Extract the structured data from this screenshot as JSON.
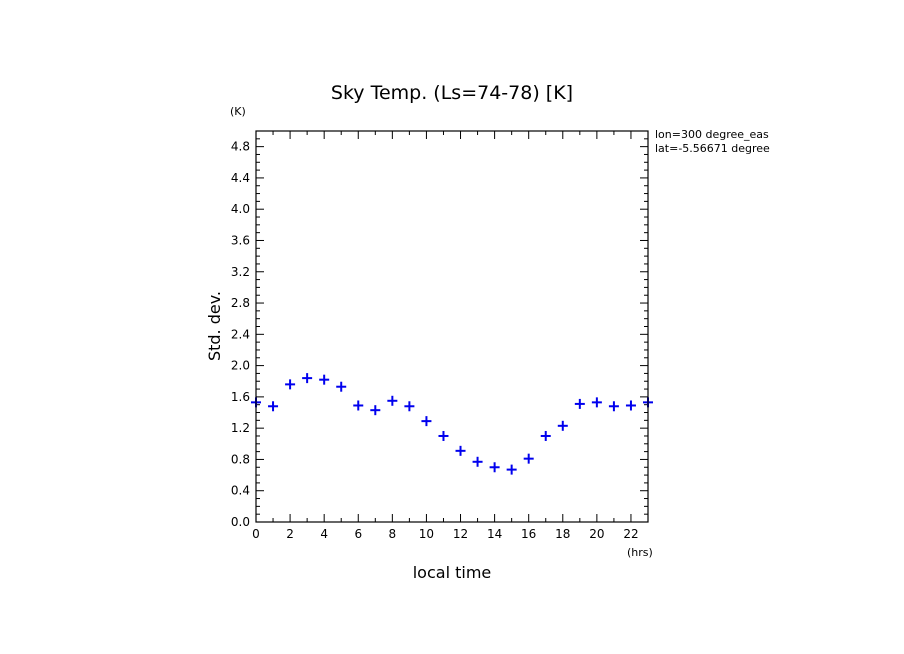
{
  "chart_data": {
    "type": "scatter",
    "title": "Sky Temp. (Ls=74-78) [K]",
    "xlabel": "local time",
    "ylabel": "Std. dev.",
    "x_unit": "(hrs)",
    "y_unit": "(K)",
    "xlim": [
      0,
      23
    ],
    "ylim": [
      0,
      5.0
    ],
    "x_major_ticks": [
      0,
      2,
      4,
      6,
      8,
      10,
      12,
      14,
      16,
      18,
      20,
      22
    ],
    "x_tick_labels": [
      "0",
      "2",
      "4",
      "6",
      "8",
      "10",
      "12",
      "14",
      "16",
      "18",
      "20",
      "22"
    ],
    "y_major_ticks": [
      0,
      0.4,
      0.8,
      1.2,
      1.6,
      2.0,
      2.4,
      2.8,
      3.2,
      3.6,
      4.0,
      4.4,
      4.8
    ],
    "y_tick_labels": [
      "0.0",
      "0.4",
      "0.8",
      "1.2",
      "1.6",
      "2.0",
      "2.4",
      "2.8",
      "3.2",
      "3.6",
      "4.0",
      "4.4",
      "4.8"
    ],
    "grid": false,
    "marker": "plus",
    "marker_color": "#0000ee",
    "annotations": [
      "lon=300 degree_eas",
      "lat=-5.56671 degree"
    ],
    "x": [
      0,
      1,
      2,
      3,
      4,
      5,
      6,
      7,
      8,
      9,
      10,
      11,
      12,
      13,
      14,
      15,
      16,
      17,
      18,
      19,
      20,
      21,
      22,
      23
    ],
    "y": [
      1.53,
      1.48,
      1.76,
      1.84,
      1.82,
      1.73,
      1.49,
      1.43,
      1.55,
      1.48,
      1.29,
      1.1,
      0.91,
      0.77,
      0.7,
      0.67,
      0.81,
      1.1,
      1.23,
      1.51,
      1.53,
      1.48,
      1.49,
      1.53
    ]
  }
}
